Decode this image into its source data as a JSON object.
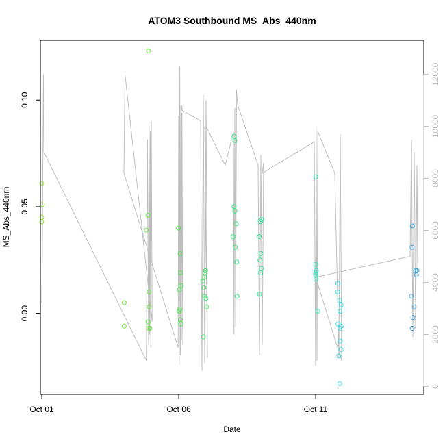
{
  "chart_data": {
    "type": "scatter",
    "title": "ATOM3 Southbound MS_Abs_440nm",
    "xlabel": "Date",
    "ylabel": "MS_Abs_440nm",
    "x_unit": "day of October",
    "xlim": [
      0.95,
      14.95
    ],
    "ylim": [
      -0.038,
      0.128
    ],
    "x_ticks": [
      {
        "value": 1,
        "label": "Oct 01"
      },
      {
        "value": 6,
        "label": "Oct 06"
      },
      {
        "value": 11,
        "label": "Oct 11"
      }
    ],
    "y_ticks": [
      {
        "value": 0.0,
        "label": "0.00"
      },
      {
        "value": 0.05,
        "label": "0.05"
      },
      {
        "value": 0.1,
        "label": "0.10"
      }
    ],
    "y2lim": [
      -300,
      13300
    ],
    "y2_ticks": [
      {
        "value": 0,
        "label": "0"
      },
      {
        "value": 2000,
        "label": "2000"
      },
      {
        "value": 4000,
        "label": "4000"
      },
      {
        "value": 6000,
        "label": "6000"
      },
      {
        "value": 8000,
        "label": "8000"
      },
      {
        "value": 10000,
        "label": "10000"
      },
      {
        "value": 12000,
        "label": "12000"
      }
    ],
    "grid": false,
    "series": [
      {
        "marker": "open-circle",
        "points": [
          {
            "x": 1.0,
            "y": 0.061,
            "color": "#9ae62e"
          },
          {
            "x": 1.02,
            "y": 0.051,
            "color": "#9ae62e"
          },
          {
            "x": 1.0,
            "y": 0.045,
            "color": "#9ae62e"
          },
          {
            "x": 1.0,
            "y": 0.043,
            "color": "#9ae62e"
          },
          {
            "x": 4.01,
            "y": 0.005,
            "color": "#6ee63d"
          },
          {
            "x": 4.01,
            "y": -0.006,
            "color": "#6ee63d"
          },
          {
            "x": 4.9,
            "y": 0.123,
            "color": "#66e640"
          },
          {
            "x": 4.88,
            "y": 0.046,
            "color": "#66e640"
          },
          {
            "x": 4.82,
            "y": 0.039,
            "color": "#66e640"
          },
          {
            "x": 4.92,
            "y": 0.01,
            "color": "#66e640"
          },
          {
            "x": 4.92,
            "y": 0.003,
            "color": "#66e640"
          },
          {
            "x": 4.88,
            "y": -0.004,
            "color": "#66e640"
          },
          {
            "x": 4.9,
            "y": -0.007,
            "color": "#66e640"
          },
          {
            "x": 4.95,
            "y": -0.007,
            "color": "#66e640"
          },
          {
            "x": 5.99,
            "y": 0.04,
            "color": "#4fe650"
          },
          {
            "x": 6.05,
            "y": 0.028,
            "color": "#4fe650"
          },
          {
            "x": 6.06,
            "y": 0.019,
            "color": "#4fe650"
          },
          {
            "x": 6.08,
            "y": 0.013,
            "color": "#4fe650"
          },
          {
            "x": 6.02,
            "y": 0.011,
            "color": "#4fe650"
          },
          {
            "x": 6.04,
            "y": 0.002,
            "color": "#4fe650"
          },
          {
            "x": 6.02,
            "y": 0.001,
            "color": "#4fe650"
          },
          {
            "x": 6.06,
            "y": -0.003,
            "color": "#4fe650"
          },
          {
            "x": 6.08,
            "y": -0.005,
            "color": "#4fe650"
          },
          {
            "x": 6.88,
            "y": 0.015,
            "color": "#3fe666"
          },
          {
            "x": 6.92,
            "y": 0.012,
            "color": "#3fe666"
          },
          {
            "x": 6.96,
            "y": 0.019,
            "color": "#3fe666"
          },
          {
            "x": 6.98,
            "y": 0.02,
            "color": "#3fe666"
          },
          {
            "x": 6.95,
            "y": 0.017,
            "color": "#3fe666"
          },
          {
            "x": 6.94,
            "y": 0.008,
            "color": "#3fe666"
          },
          {
            "x": 7.0,
            "y": 0.007,
            "color": "#3fe666"
          },
          {
            "x": 7.02,
            "y": 0.003,
            "color": "#3fe666"
          },
          {
            "x": 6.9,
            "y": -0.011,
            "color": "#3fe666"
          },
          {
            "x": 8.02,
            "y": 0.083,
            "color": "#35e680"
          },
          {
            "x": 8.05,
            "y": 0.081,
            "color": "#35e680"
          },
          {
            "x": 8.02,
            "y": 0.05,
            "color": "#35e680"
          },
          {
            "x": 8.05,
            "y": 0.048,
            "color": "#35e680"
          },
          {
            "x": 8.1,
            "y": 0.042,
            "color": "#35e680"
          },
          {
            "x": 7.99,
            "y": 0.036,
            "color": "#35e680"
          },
          {
            "x": 8.06,
            "y": 0.031,
            "color": "#35e680"
          },
          {
            "x": 8.12,
            "y": 0.024,
            "color": "#35e680"
          },
          {
            "x": 8.13,
            "y": 0.008,
            "color": "#35e680"
          },
          {
            "x": 9.03,
            "y": 0.044,
            "color": "#34e698"
          },
          {
            "x": 8.99,
            "y": 0.043,
            "color": "#34e698"
          },
          {
            "x": 8.94,
            "y": 0.036,
            "color": "#34e698"
          },
          {
            "x": 9.0,
            "y": 0.028,
            "color": "#34e698"
          },
          {
            "x": 8.97,
            "y": 0.025,
            "color": "#34e698"
          },
          {
            "x": 9.02,
            "y": 0.021,
            "color": "#34e698"
          },
          {
            "x": 8.99,
            "y": 0.019,
            "color": "#34e698"
          },
          {
            "x": 8.95,
            "y": 0.009,
            "color": "#34e698"
          },
          {
            "x": 11.0,
            "y": 0.064,
            "color": "#33e6c2"
          },
          {
            "x": 11.0,
            "y": 0.023,
            "color": "#33e6c2"
          },
          {
            "x": 11.02,
            "y": 0.02,
            "color": "#33e6c2"
          },
          {
            "x": 11.0,
            "y": 0.019,
            "color": "#33e6c2"
          },
          {
            "x": 11.0,
            "y": 0.018,
            "color": "#33e6c2"
          },
          {
            "x": 11.01,
            "y": 0.016,
            "color": "#33e6c2"
          },
          {
            "x": 11.08,
            "y": 0.001,
            "color": "#33e6c2"
          },
          {
            "x": 11.81,
            "y": 0.014,
            "color": "#32dfe6"
          },
          {
            "x": 11.8,
            "y": 0.01,
            "color": "#32dfe6"
          },
          {
            "x": 11.88,
            "y": 0.006,
            "color": "#32dfe6"
          },
          {
            "x": 11.93,
            "y": 0.004,
            "color": "#32dfe6"
          },
          {
            "x": 11.89,
            "y": 0.001,
            "color": "#32dfe6"
          },
          {
            "x": 11.82,
            "y": -0.005,
            "color": "#32dfe6"
          },
          {
            "x": 11.93,
            "y": -0.006,
            "color": "#32dfe6"
          },
          {
            "x": 11.89,
            "y": -0.007,
            "color": "#32dfe6"
          },
          {
            "x": 11.9,
            "y": -0.013,
            "color": "#32dfe6"
          },
          {
            "x": 11.93,
            "y": -0.017,
            "color": "#32dfe6"
          },
          {
            "x": 11.85,
            "y": -0.02,
            "color": "#32dfe6"
          },
          {
            "x": 11.88,
            "y": -0.033,
            "color": "#32dfe6"
          },
          {
            "x": 14.53,
            "y": 0.041,
            "color": "#3aa7e6"
          },
          {
            "x": 14.52,
            "y": 0.031,
            "color": "#3aa7e6"
          },
          {
            "x": 14.65,
            "y": 0.02,
            "color": "#3aa7e6"
          },
          {
            "x": 14.7,
            "y": 0.02,
            "color": "#3aa7e6"
          },
          {
            "x": 14.68,
            "y": 0.018,
            "color": "#3aa7e6"
          },
          {
            "x": 14.5,
            "y": 0.008,
            "color": "#3aa7e6"
          },
          {
            "x": 14.6,
            "y": 0.003,
            "color": "#3aa7e6"
          },
          {
            "x": 14.55,
            "y": -0.002,
            "color": "#3aa7e6"
          },
          {
            "x": 14.53,
            "y": -0.007,
            "color": "#3aa7e6"
          }
        ]
      },
      {
        "axis": "right",
        "type": "line",
        "color": "#bebebe",
        "x": [
          1.0,
          1.02,
          1.06,
          1.08,
          4.82,
          4.86,
          4.9,
          4.92,
          4.94,
          4.96,
          4.98,
          5.0,
          5.03,
          4.04,
          4.0,
          4.0,
          5.98,
          6.0,
          6.02,
          6.04,
          6.06,
          6.08,
          6.1,
          6.12,
          6.15,
          6.1,
          6.14,
          6.8,
          6.85,
          6.9,
          6.95,
          7.0,
          7.05,
          6.95,
          7.0,
          7.7,
          8.0,
          8.02,
          8.05,
          8.08,
          8.11,
          8.12,
          8.16,
          8.9,
          8.95,
          9.0,
          9.05,
          9.1,
          9.05,
          10.95,
          11.0,
          11.02,
          11.05,
          11.08,
          11.7,
          11.85,
          11.9,
          11.95,
          11.0,
          14.45,
          14.5,
          14.55,
          14.6,
          14.65,
          14.7,
          14.73
        ],
        "y": [
          3200,
          5000,
          12000,
          9000,
          1000,
          9500,
          1600,
          10000,
          2000,
          9800,
          1500,
          10200,
          2500,
          12000,
          8200,
          8200,
          1500,
          10400,
          800,
          12300,
          1200,
          10800,
          1800,
          10500,
          1600,
          10800,
          10600,
          10200,
          600,
          11200,
          900,
          11000,
          1100,
          10000,
          10000,
          8500,
          9800,
          2000,
          10700,
          2300,
          11400,
          11200,
          10800,
          8500,
          1200,
          8900,
          1600,
          8600,
          8200,
          9400,
          800,
          10000,
          1000,
          9800,
          8200,
          1100,
          9700,
          1000,
          4200,
          5000,
          9500,
          1900,
          9000,
          2200,
          8500,
          4200
        ]
      }
    ]
  }
}
